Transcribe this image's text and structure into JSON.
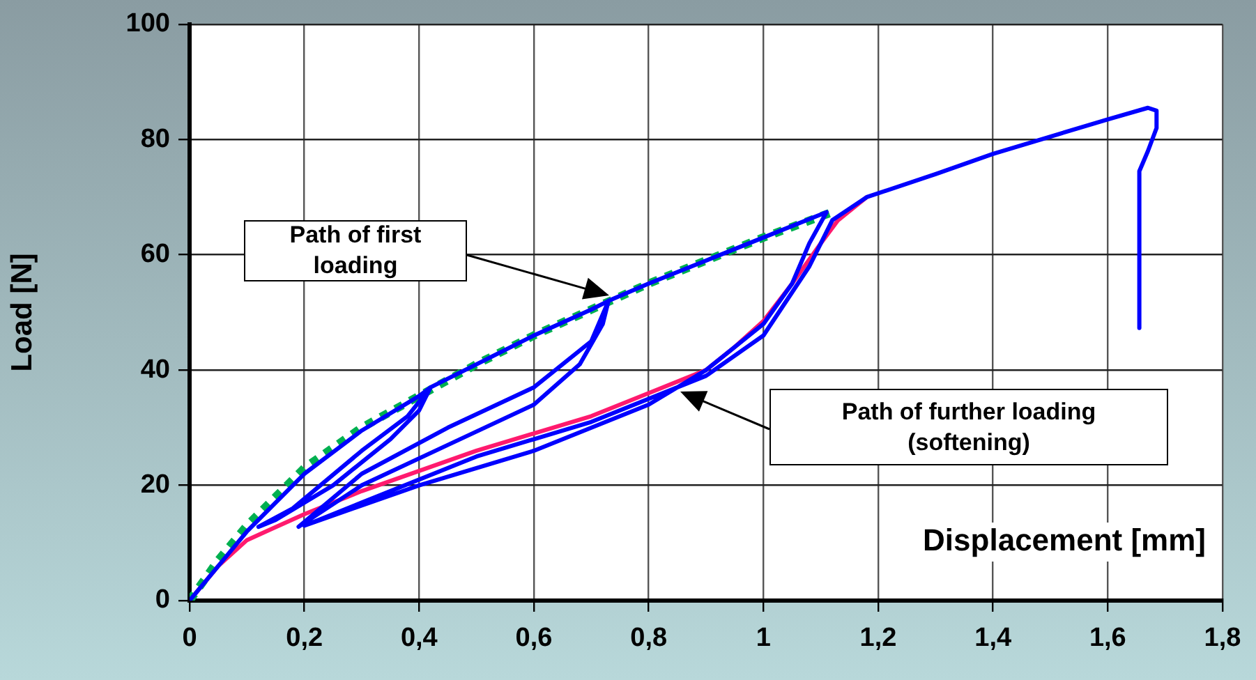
{
  "chart_data": {
    "type": "line",
    "xlabel": "Displacement [mm]",
    "ylabel": "Load [N]",
    "xlim": [
      0,
      1.8
    ],
    "xticks": [
      0,
      {
        "value": 0.2,
        "label": "0,2"
      },
      {
        "value": 0.4,
        "label": "0,4"
      },
      {
        "value": 0.6,
        "label": "0,6"
      },
      {
        "value": 0.8,
        "label": "0,8"
      },
      1,
      {
        "value": 1.2,
        "label": "1,2"
      },
      {
        "value": 1.4,
        "label": "1,4"
      },
      {
        "value": 1.6,
        "label": "1,6"
      },
      {
        "value": 1.8,
        "label": "1,8"
      }
    ],
    "ylim": [
      0,
      100
    ],
    "yticks": [
      0,
      20,
      40,
      60,
      80,
      100
    ],
    "grid": true,
    "legend": false,
    "marker": "none",
    "series": [
      {
        "color": "#0000ff",
        "line_style": "solid",
        "x": [
          0,
          0.05,
          0.1,
          0.15,
          0.2,
          0.3,
          0.4,
          0.42,
          0.4,
          0.35,
          0.25,
          0.15,
          0.12,
          0.18,
          0.3,
          0.38,
          0.42,
          0.5,
          0.6,
          0.7,
          0.73,
          0.7,
          0.6,
          0.45,
          0.3,
          0.19,
          0.3,
          0.45,
          0.6,
          0.68,
          0.72,
          0.73,
          0.8,
          0.9,
          1.0,
          1.11,
          1.08,
          1.05,
          1.0,
          0.9,
          0.8,
          0.6,
          0.4,
          0.2,
          0.3,
          0.5,
          0.7,
          0.9,
          1.0,
          1.08,
          1.12,
          1.18,
          1.3,
          1.4,
          1.5,
          1.6,
          1.67,
          1.685,
          1.685,
          1.67,
          1.655,
          1.655
        ],
        "values": [
          0,
          6,
          12,
          17,
          22,
          29.5,
          35.5,
          37,
          33,
          28,
          20,
          14,
          12.8,
          16,
          26,
          32,
          37,
          41,
          46,
          50.5,
          52,
          45,
          37,
          30,
          22,
          12.8,
          20,
          27,
          34,
          41,
          48,
          52,
          55,
          59,
          63,
          67.4,
          62,
          55,
          48,
          40,
          34,
          26,
          20,
          13,
          17,
          25,
          31,
          39,
          46,
          58,
          66,
          70,
          74,
          77.5,
          80.5,
          83.5,
          85.5,
          85,
          82,
          78,
          74.5,
          47.3
        ]
      },
      {
        "color": "#00b050",
        "line_style": "dotted",
        "x": [
          0,
          0.05,
          0.1,
          0.15,
          0.2,
          0.3,
          0.4,
          0.5,
          0.6,
          0.7,
          0.8,
          0.9,
          1.0,
          1.12
        ],
        "values": [
          0,
          7,
          13,
          18,
          23,
          30,
          35.5,
          41,
          46,
          50.5,
          55,
          59,
          63,
          67.4
        ]
      },
      {
        "color": "#ff1a6e",
        "line_style": "solid",
        "x": [
          0,
          0.05,
          0.1,
          0.2,
          0.3,
          0.4,
          0.5,
          0.6,
          0.7,
          0.8,
          0.9,
          0.95,
          1.0,
          1.05,
          1.1,
          1.13,
          1.18
        ],
        "values": [
          0,
          6,
          10.5,
          15,
          19,
          22.5,
          26,
          29,
          32,
          36,
          40,
          44,
          48.5,
          55,
          62,
          66,
          70
        ]
      }
    ],
    "annotations": [
      "Path of first\nloading",
      "Path of further loading\n(softening)"
    ]
  }
}
